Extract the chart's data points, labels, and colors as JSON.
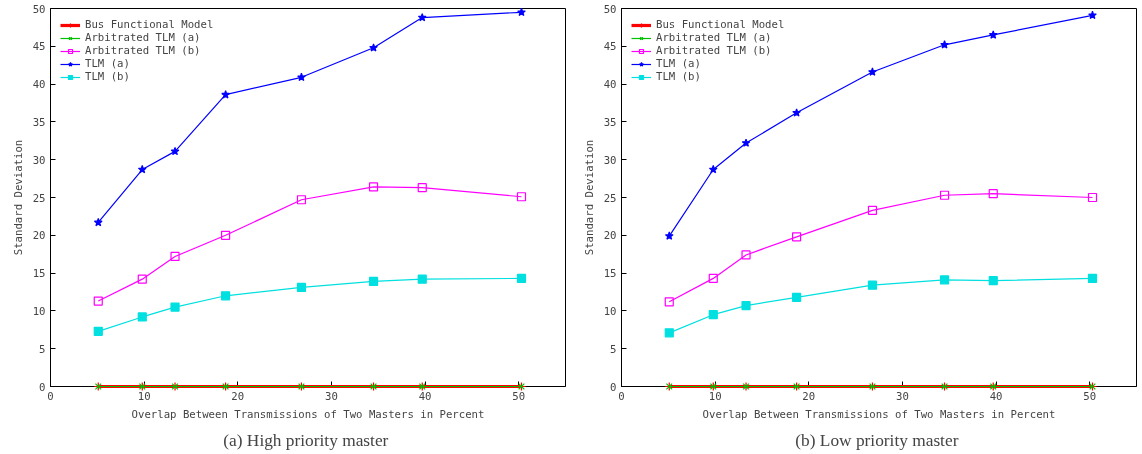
{
  "chart_data": [
    {
      "type": "line",
      "xlabel": "Overlap Between Transmissions of Two Masters in Percent",
      "ylabel": "Standard Deviation",
      "annotations": [
        "(a)  High priority master"
      ],
      "x": [
        5.1,
        9.8,
        13.3,
        18.7,
        26.8,
        34.5,
        39.7,
        50.3
      ],
      "xlim": [
        0,
        55
      ],
      "xticks": [
        0,
        10,
        20,
        30,
        40,
        50
      ],
      "ylim": [
        0,
        50
      ],
      "yticks": [
        0,
        5,
        10,
        15,
        20,
        25,
        30,
        35,
        40,
        45,
        50
      ],
      "grid": false,
      "legend": "top left",
      "series": [
        {
          "name": "Bus Functional Model",
          "color": "#ff0000",
          "marker": "cross",
          "values": [
            0,
            0,
            0,
            0,
            0,
            0,
            0,
            0
          ]
        },
        {
          "name": "Arbitrated TLM (a)",
          "color": "#00c000",
          "marker": "x",
          "values": [
            0,
            0,
            0,
            0,
            0,
            0,
            0,
            0
          ]
        },
        {
          "name": "Arbitrated TLM (b)",
          "color": "#ff00ff",
          "marker": "square_open",
          "values": [
            11.3,
            14.2,
            17.2,
            20.0,
            24.7,
            26.4,
            26.3,
            25.1
          ]
        },
        {
          "name": "TLM (a)",
          "color": "#0000ff",
          "marker": "star",
          "values": [
            21.7,
            28.7,
            31.1,
            38.6,
            40.9,
            44.8,
            48.8,
            49.5
          ]
        },
        {
          "name": "TLM (b)",
          "color": "#00e0e0",
          "marker": "square",
          "values": [
            7.3,
            9.2,
            10.5,
            12.0,
            13.1,
            13.9,
            14.2,
            14.3
          ]
        }
      ]
    },
    {
      "type": "line",
      "xlabel": "Overlap Between Transmissions of Two Masters in Percent",
      "ylabel": "Standard Deviation",
      "annotations": [
        "(b)  Low priority master"
      ],
      "x": [
        5.1,
        9.8,
        13.3,
        18.7,
        26.8,
        34.5,
        39.7,
        50.3
      ],
      "xlim": [
        0,
        55
      ],
      "xticks": [
        0,
        10,
        20,
        30,
        40,
        50
      ],
      "ylim": [
        0,
        50
      ],
      "yticks": [
        0,
        5,
        10,
        15,
        20,
        25,
        30,
        35,
        40,
        45,
        50
      ],
      "grid": false,
      "legend": "top left",
      "series": [
        {
          "name": "Bus Functional Model",
          "color": "#ff0000",
          "marker": "cross",
          "values": [
            0,
            0,
            0,
            0,
            0,
            0,
            0,
            0
          ]
        },
        {
          "name": "Arbitrated TLM (a)",
          "color": "#00c000",
          "marker": "x",
          "values": [
            0,
            0,
            0,
            0,
            0,
            0,
            0,
            0
          ]
        },
        {
          "name": "Arbitrated TLM (b)",
          "color": "#ff00ff",
          "marker": "square_open",
          "values": [
            11.2,
            14.3,
            17.4,
            19.8,
            23.3,
            25.3,
            25.5,
            25.0
          ]
        },
        {
          "name": "TLM (a)",
          "color": "#0000ff",
          "marker": "star",
          "values": [
            19.9,
            28.7,
            32.2,
            36.2,
            41.6,
            45.2,
            46.5,
            49.1
          ]
        },
        {
          "name": "TLM (b)",
          "color": "#00e0e0",
          "marker": "square",
          "values": [
            7.1,
            9.5,
            10.7,
            11.8,
            13.4,
            14.1,
            14.0,
            14.3
          ]
        }
      ]
    }
  ]
}
